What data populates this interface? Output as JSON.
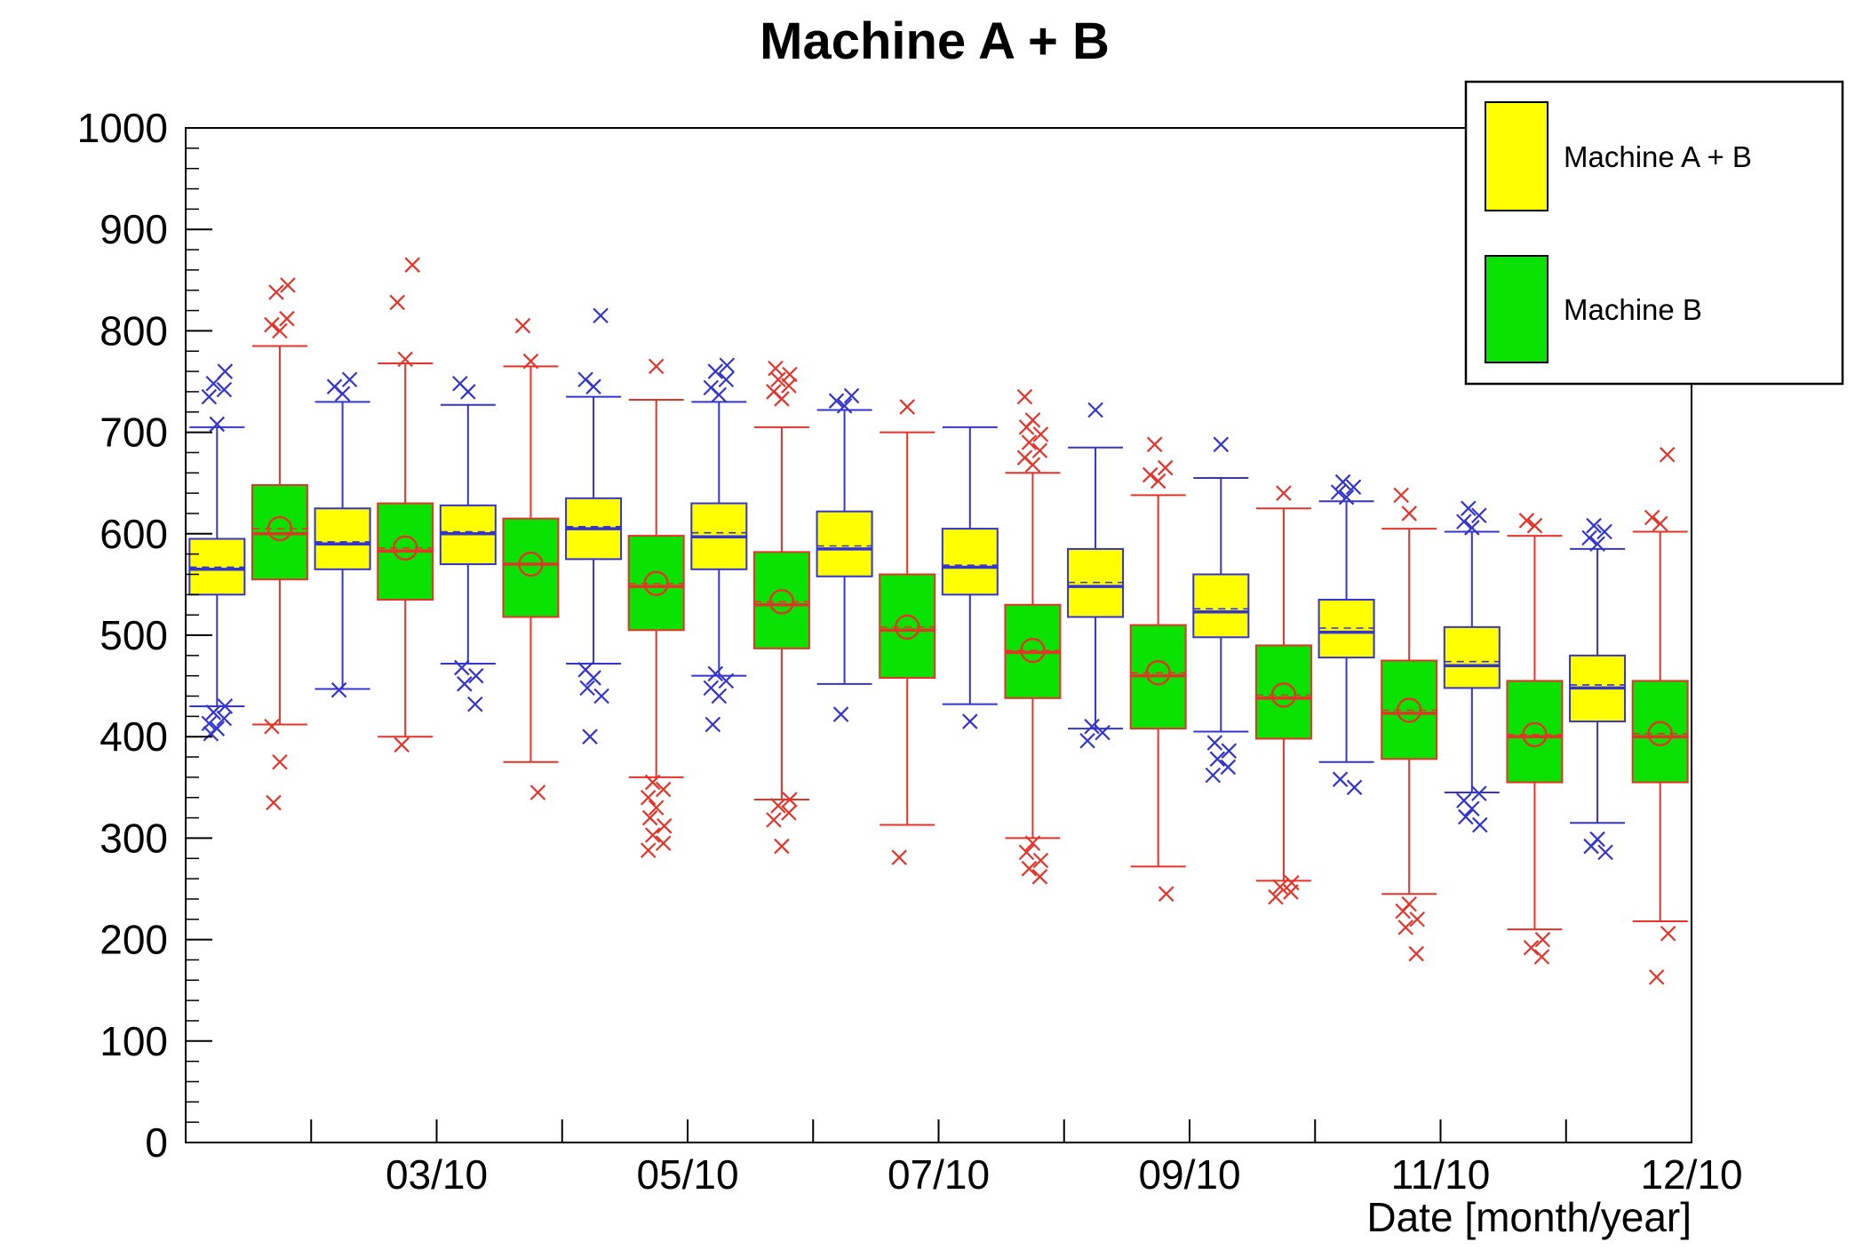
{
  "title": "Machine A + B",
  "axes": {
    "x_title": "Date [month/year]",
    "y_range": [
      0,
      1000
    ],
    "y_major_step": 100,
    "y_minor_step": 20,
    "y_tick_labels": [
      0,
      100,
      200,
      300,
      400,
      500,
      600,
      700,
      800,
      900,
      1000
    ],
    "x_months": 12,
    "x_tick_labels": [
      {
        "text": "03/10",
        "pos": 2
      },
      {
        "text": "05/10",
        "pos": 4
      },
      {
        "text": "07/10",
        "pos": 6
      },
      {
        "text": "09/10",
        "pos": 8
      },
      {
        "text": "11/10",
        "pos": 10
      },
      {
        "text": "12/10",
        "pos": 12
      }
    ]
  },
  "legend": {
    "items": [
      {
        "label": "Machine A + B",
        "color": "#ffff00"
      },
      {
        "label": "Machine B",
        "color": "#09e202"
      }
    ]
  },
  "chart_data": {
    "type": "boxplot",
    "title": "Machine A + B",
    "xlabel": "Date [month/year]",
    "ylabel": "",
    "ylim": [
      0,
      1000
    ],
    "x_unit": "month/year 2010, two candles per month (Machine A + B, Machine B)",
    "series_styles": {
      "A+B": {
        "fill": "#ffff00",
        "line": "#3434d0",
        "offset": 0.25,
        "mean_circle": false
      },
      "B": {
        "fill": "#09e202",
        "line": "#e63329",
        "offset": 0.75,
        "mean_circle": true
      }
    },
    "boxes": [
      {
        "month": 1,
        "series": "A+B",
        "low": 430,
        "q1": 540,
        "median": 565,
        "q3": 595,
        "high": 705,
        "mean": 567,
        "outliers_high": [
          708,
          735,
          742,
          748,
          760
        ],
        "outliers_low": [
          403,
          408,
          413,
          418,
          424,
          430
        ]
      },
      {
        "month": 1,
        "series": "B",
        "low": 412,
        "q1": 555,
        "median": 600,
        "q3": 648,
        "high": 785,
        "mean": 605,
        "outliers_high": [
          800,
          806,
          812,
          838,
          845
        ],
        "outliers_low": [
          335,
          375,
          410
        ]
      },
      {
        "month": 2,
        "series": "A+B",
        "low": 447,
        "q1": 565,
        "median": 590,
        "q3": 625,
        "high": 730,
        "mean": 592,
        "outliers_high": [
          738,
          745,
          752
        ],
        "outliers_low": [
          446
        ]
      },
      {
        "month": 2,
        "series": "B",
        "low": 400,
        "q1": 535,
        "median": 583,
        "q3": 630,
        "high": 768,
        "mean": 586,
        "outliers_high": [
          772,
          828,
          865
        ],
        "outliers_low": [
          392
        ]
      },
      {
        "month": 3,
        "series": "A+B",
        "low": 472,
        "q1": 570,
        "median": 600,
        "q3": 628,
        "high": 727,
        "mean": 602,
        "outliers_high": [
          740,
          748
        ],
        "outliers_low": [
          432,
          452,
          460,
          468
        ]
      },
      {
        "month": 3,
        "series": "B",
        "low": 375,
        "q1": 518,
        "median": 570,
        "q3": 615,
        "high": 765,
        "mean": 570,
        "outliers_high": [
          770,
          805
        ],
        "outliers_low": [
          345
        ]
      },
      {
        "month": 4,
        "series": "A+B",
        "low": 472,
        "q1": 575,
        "median": 605,
        "q3": 635,
        "high": 735,
        "mean": 607,
        "outliers_high": [
          745,
          752,
          815
        ],
        "outliers_low": [
          400,
          440,
          448,
          458,
          466
        ]
      },
      {
        "month": 4,
        "series": "B",
        "low": 360,
        "q1": 505,
        "median": 548,
        "q3": 598,
        "high": 732,
        "mean": 551,
        "outliers_high": [
          765
        ],
        "outliers_low": [
          288,
          295,
          303,
          312,
          320,
          330,
          340,
          348,
          355
        ]
      },
      {
        "month": 5,
        "series": "A+B",
        "low": 460,
        "q1": 565,
        "median": 597,
        "q3": 630,
        "high": 730,
        "mean": 601,
        "outliers_high": [
          737,
          744,
          752,
          760,
          766
        ],
        "outliers_low": [
          412,
          440,
          448,
          455,
          462
        ]
      },
      {
        "month": 5,
        "series": "B",
        "low": 338,
        "q1": 487,
        "median": 530,
        "q3": 582,
        "high": 705,
        "mean": 533,
        "outliers_high": [
          733,
          740,
          746,
          752,
          757,
          763
        ],
        "outliers_low": [
          292,
          318,
          325,
          332,
          338
        ]
      },
      {
        "month": 6,
        "series": "A+B",
        "low": 452,
        "q1": 558,
        "median": 585,
        "q3": 622,
        "high": 722,
        "mean": 588,
        "outliers_high": [
          726,
          731,
          736
        ],
        "outliers_low": [
          422
        ]
      },
      {
        "month": 6,
        "series": "B",
        "low": 313,
        "q1": 458,
        "median": 505,
        "q3": 560,
        "high": 700,
        "mean": 508,
        "outliers_high": [
          725
        ],
        "outliers_low": [
          281
        ]
      },
      {
        "month": 7,
        "series": "A+B",
        "low": 432,
        "q1": 540,
        "median": 567,
        "q3": 605,
        "high": 705,
        "mean": 569,
        "outliers_high": [],
        "outliers_low": [
          415
        ]
      },
      {
        "month": 7,
        "series": "B",
        "low": 300,
        "q1": 438,
        "median": 483,
        "q3": 530,
        "high": 660,
        "mean": 485,
        "outliers_high": [
          668,
          675,
          682,
          690,
          698,
          705,
          712,
          735
        ],
        "outliers_low": [
          262,
          270,
          278,
          286,
          295
        ]
      },
      {
        "month": 8,
        "series": "A+B",
        "low": 408,
        "q1": 518,
        "median": 548,
        "q3": 585,
        "high": 685,
        "mean": 552,
        "outliers_high": [
          722
        ],
        "outliers_low": [
          396,
          404,
          410
        ]
      },
      {
        "month": 8,
        "series": "B",
        "low": 272,
        "q1": 408,
        "median": 460,
        "q3": 510,
        "high": 638,
        "mean": 463,
        "outliers_high": [
          652,
          658,
          665,
          688
        ],
        "outliers_low": [
          245
        ]
      },
      {
        "month": 9,
        "series": "A+B",
        "low": 405,
        "q1": 498,
        "median": 523,
        "q3": 560,
        "high": 655,
        "mean": 526,
        "outliers_high": [
          688
        ],
        "outliers_low": [
          362,
          370,
          378,
          386,
          394
        ]
      },
      {
        "month": 9,
        "series": "B",
        "low": 258,
        "q1": 398,
        "median": 438,
        "q3": 490,
        "high": 625,
        "mean": 441,
        "outliers_high": [
          640
        ],
        "outliers_low": [
          242,
          247,
          252,
          256
        ]
      },
      {
        "month": 10,
        "series": "A+B",
        "low": 375,
        "q1": 478,
        "median": 503,
        "q3": 535,
        "high": 632,
        "mean": 507,
        "outliers_high": [
          636,
          641,
          646,
          651
        ],
        "outliers_low": [
          350,
          358
        ]
      },
      {
        "month": 10,
        "series": "B",
        "low": 245,
        "q1": 378,
        "median": 423,
        "q3": 475,
        "high": 605,
        "mean": 426,
        "outliers_high": [
          620,
          638
        ],
        "outliers_low": [
          186,
          212,
          220,
          228,
          235
        ]
      },
      {
        "month": 11,
        "series": "A+B",
        "low": 345,
        "q1": 448,
        "median": 470,
        "q3": 508,
        "high": 602,
        "mean": 474,
        "outliers_high": [
          606,
          612,
          618,
          625
        ],
        "outliers_low": [
          313,
          321,
          329,
          337,
          344
        ]
      },
      {
        "month": 11,
        "series": "B",
        "low": 210,
        "q1": 355,
        "median": 400,
        "q3": 455,
        "high": 598,
        "mean": 402,
        "outliers_high": [
          608,
          613
        ],
        "outliers_low": [
          183,
          192,
          200
        ]
      },
      {
        "month": 12,
        "series": "A+B",
        "low": 315,
        "q1": 415,
        "median": 448,
        "q3": 480,
        "high": 585,
        "mean": 451,
        "outliers_high": [
          590,
          596,
          602,
          608
        ],
        "outliers_low": [
          286,
          292,
          299
        ]
      },
      {
        "month": 12,
        "series": "B",
        "low": 218,
        "q1": 355,
        "median": 400,
        "q3": 455,
        "high": 602,
        "mean": 403,
        "outliers_high": [
          610,
          616,
          678
        ],
        "outliers_low": [
          163,
          206
        ]
      }
    ]
  }
}
